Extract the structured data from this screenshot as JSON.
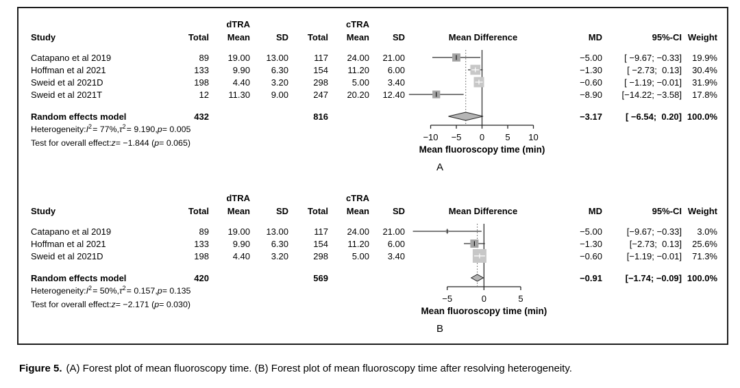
{
  "caption": {
    "label": "Figure 5.",
    "text": "(A) Forest plot of mean fluoroscopy time. (B) Forest plot of mean fluoroscopy time after resolving heterogeneity."
  },
  "colors": {
    "square_gray": "#a3a3a3",
    "square_light_gray": "#c7c7c7",
    "diamond_fill": "#b5b5b5",
    "line_black": "#2e2e2e"
  },
  "chart_data": [
    {
      "type": "forest",
      "panel_label": "A",
      "headers": {
        "study": "Study",
        "total1": "Total",
        "group1": "dTRA",
        "mean1": "Mean",
        "sd1": "SD",
        "total2": "Total",
        "group2": "cTRA",
        "mean2": "Mean",
        "sd2": "SD",
        "effect": "Mean Difference",
        "md": "MD",
        "ci": "95%-CI",
        "weight": "Weight"
      },
      "xlabel": "Mean fluoroscopy time (min)",
      "axis_ticks": [
        -10,
        -5,
        0,
        5,
        10
      ],
      "xlim": [
        -15.0,
        15.4
      ],
      "studies": [
        {
          "name": "Catapano et al 2019",
          "total1": "89",
          "mean1": "19.00",
          "sd1": "13.00",
          "total2": "117",
          "mean2": "24.00",
          "sd2": "21.00",
          "md": -5.0,
          "ci_low": -9.67,
          "ci_high": -0.33,
          "md_text": "−5.00",
          "ci_text": "[ −9.67; −0.33]",
          "weight": 19.9,
          "weight_text": "19.9%"
        },
        {
          "name": "Hoffman et al 2021",
          "total1": "133",
          "mean1": "9.90",
          "sd1": "6.30",
          "total2": "154",
          "mean2": "11.20",
          "sd2": "6.00",
          "md": -1.3,
          "ci_low": -2.73,
          "ci_high": 0.13,
          "md_text": "−1.30",
          "ci_text": "[ −2.73;  0.13]",
          "weight": 30.4,
          "weight_text": "30.4%"
        },
        {
          "name": "Sweid et al 2021D",
          "total1": "198",
          "mean1": "4.40",
          "sd1": "3.20",
          "total2": "298",
          "mean2": "5.00",
          "sd2": "3.40",
          "md": -0.6,
          "ci_low": -1.19,
          "ci_high": -0.01,
          "md_text": "−0.60",
          "ci_text": "[ −1.19; −0.01]",
          "weight": 31.9,
          "weight_text": "31.9%"
        },
        {
          "name": "Sweid et al 2021T",
          "total1": "12",
          "mean1": "11.30",
          "sd1": "9.00",
          "total2": "247",
          "mean2": "20.20",
          "sd2": "12.40",
          "md": -8.9,
          "ci_low": -14.22,
          "ci_high": -3.58,
          "md_text": "−8.90",
          "ci_text": "[−14.22; −3.58]",
          "weight": 17.8,
          "weight_text": "17.8%"
        }
      ],
      "summary": {
        "name": "Random effects model",
        "total1": "432",
        "total2": "816",
        "md": -3.17,
        "ci_low": -6.54,
        "ci_high": 0.2,
        "md_text": "−3.17",
        "ci_text": "[ −6.54;  0.20]",
        "weight_text": "100.0%"
      },
      "heterogeneity": {
        "t1": "Heterogeneity: ",
        "i": "I",
        "isup": "2",
        "t2": " = 77%, ",
        "tau": "τ",
        "tausup": "2",
        "t3": " = 9.190, ",
        "p": "p",
        "t4": " = 0.005"
      },
      "overall_test": {
        "t1": "Test for overall effect: ",
        "z": "z",
        "t2": " = −1.844 (",
        "p": "p",
        "t3": " = 0.065)"
      }
    },
    {
      "type": "forest",
      "panel_label": "B",
      "headers": {
        "study": "Study",
        "total1": "Total",
        "group1": "dTRA",
        "mean1": "Mean",
        "sd1": "SD",
        "total2": "Total",
        "group2": "cTRA",
        "mean2": "Mean",
        "sd2": "SD",
        "effect": "Mean Difference",
        "md": "MD",
        "ci": "95%-CI",
        "weight": "Weight"
      },
      "xlabel": "Mean fluoroscopy time (min)",
      "axis_ticks": [
        -5,
        0,
        5
      ],
      "xlim": [
        -10.75,
        10.5
      ],
      "studies": [
        {
          "name": "Catapano et al 2019",
          "total1": "89",
          "mean1": "19.00",
          "sd1": "13.00",
          "total2": "117",
          "mean2": "24.00",
          "sd2": "21.00",
          "md": -5.0,
          "ci_low": -9.67,
          "ci_high": -0.33,
          "md_text": "−5.00",
          "ci_text": "[−9.67; −0.33]",
          "weight": 3.0,
          "weight_text": "3.0%"
        },
        {
          "name": "Hoffman et al 2021",
          "total1": "133",
          "mean1": "9.90",
          "sd1": "6.30",
          "total2": "154",
          "mean2": "11.20",
          "sd2": "6.00",
          "md": -1.3,
          "ci_low": -2.73,
          "ci_high": 0.13,
          "md_text": "−1.30",
          "ci_text": "[−2.73;  0.13]",
          "weight": 25.6,
          "weight_text": "25.6%"
        },
        {
          "name": "Sweid et al 2021D",
          "total1": "198",
          "mean1": "4.40",
          "sd1": "3.20",
          "total2": "298",
          "mean2": "5.00",
          "sd2": "3.40",
          "md": -0.6,
          "ci_low": -1.19,
          "ci_high": -0.01,
          "md_text": "−0.60",
          "ci_text": "[−1.19; −0.01]",
          "weight": 71.3,
          "weight_text": "71.3%"
        }
      ],
      "summary": {
        "name": "Random effects model",
        "total1": "420",
        "total2": "569",
        "md": -0.91,
        "ci_low": -1.74,
        "ci_high": -0.09,
        "md_text": "−0.91",
        "ci_text": "[−1.74; −0.09]",
        "weight_text": "100.0%"
      },
      "heterogeneity": {
        "t1": "Heterogeneity: ",
        "i": "I",
        "isup": "2",
        "t2": " = 50%, ",
        "tau": "τ",
        "tausup": "2",
        "t3": " = 0.157, ",
        "p": "p",
        "t4": " = 0.135"
      },
      "overall_test": {
        "t1": "Test for overall effect: ",
        "z": "z",
        "t2": " = −2.171 (",
        "p": "p",
        "t3": " = 0.030)"
      }
    }
  ]
}
